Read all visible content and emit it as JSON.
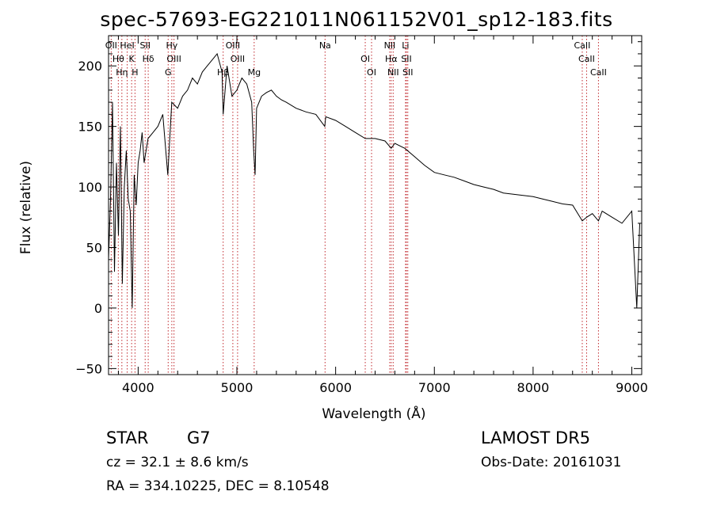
{
  "chart_data": {
    "type": "line",
    "title": "spec-57693-EG221011N061152V01_sp12-183.fits",
    "xlabel": "Wavelength (Å)",
    "ylabel": "Flux (relative)",
    "xlim": [
      3700,
      9100
    ],
    "ylim": [
      -55,
      225
    ],
    "x_ticks": [
      4000,
      5000,
      6000,
      7000,
      8000,
      9000
    ],
    "y_ticks": [
      -50,
      0,
      50,
      100,
      150,
      200
    ],
    "grid": false,
    "line_color": "#000000",
    "marker_color": "#c0282d",
    "series": [
      {
        "x": [
          3700,
          3720,
          3740,
          3760,
          3780,
          3800,
          3820,
          3840,
          3860,
          3880,
          3900,
          3920,
          3940,
          3960,
          3980,
          4000,
          4020,
          4040,
          4060,
          4080,
          4100,
          4150,
          4200,
          4250,
          4300,
          4340,
          4400,
          4450,
          4500,
          4550,
          4600,
          4650,
          4700,
          4750,
          4800,
          4850,
          4861,
          4900,
          4950,
          5000,
          5050,
          5100,
          5150,
          5170,
          5184,
          5200,
          5250,
          5300,
          5350,
          5400,
          5450,
          5500,
          5600,
          5700,
          5800,
          5890,
          5900,
          6000,
          6100,
          6200,
          6300,
          6400,
          6500,
          6563,
          6600,
          6700,
          6800,
          6900,
          7000,
          7100,
          7200,
          7300,
          7400,
          7500,
          7600,
          7700,
          7800,
          7900,
          8000,
          8100,
          8200,
          8300,
          8400,
          8498,
          8542,
          8600,
          8662,
          8700,
          8800,
          8900,
          9000,
          9050,
          9080
        ],
        "y": [
          40,
          90,
          170,
          30,
          120,
          60,
          150,
          20,
          100,
          130,
          90,
          80,
          0,
          110,
          85,
          120,
          130,
          145,
          120,
          130,
          140,
          145,
          150,
          160,
          110,
          170,
          165,
          175,
          180,
          190,
          185,
          195,
          200,
          205,
          210,
          195,
          160,
          200,
          175,
          180,
          190,
          185,
          170,
          130,
          110,
          165,
          175,
          178,
          180,
          175,
          172,
          170,
          165,
          162,
          160,
          150,
          158,
          155,
          150,
          145,
          140,
          140,
          138,
          132,
          136,
          132,
          125,
          118,
          112,
          110,
          108,
          105,
          102,
          100,
          98,
          95,
          94,
          93,
          92,
          90,
          88,
          86,
          85,
          72,
          75,
          78,
          72,
          80,
          75,
          70,
          80,
          0,
          70
        ]
      }
    ],
    "line_markers": [
      {
        "x": 3727,
        "label": "OII"
      },
      {
        "x": 3799,
        "label": "Hθ"
      },
      {
        "x": 3835,
        "label": "Hη"
      },
      {
        "x": 3889,
        "label": "HeI"
      },
      {
        "x": 3934,
        "label": "K"
      },
      {
        "x": 3968,
        "label": "H"
      },
      {
        "x": 4071,
        "label": "SII"
      },
      {
        "x": 4102,
        "label": "Hδ"
      },
      {
        "x": 4304,
        "label": "G"
      },
      {
        "x": 4341,
        "label": "Hγ"
      },
      {
        "x": 4363,
        "label": "OIII"
      },
      {
        "x": 4861,
        "label": "Hβ"
      },
      {
        "x": 4959,
        "label": "OIII"
      },
      {
        "x": 5007,
        "label": "OIII"
      },
      {
        "x": 5175,
        "label": "Mg"
      },
      {
        "x": 5893,
        "label": "Na"
      },
      {
        "x": 6300,
        "label": "OI"
      },
      {
        "x": 6364,
        "label": "OI"
      },
      {
        "x": 6548,
        "label": "NII"
      },
      {
        "x": 6563,
        "label": "Hα"
      },
      {
        "x": 6583,
        "label": "NII"
      },
      {
        "x": 6708,
        "label": "Li"
      },
      {
        "x": 6717,
        "label": "SII"
      },
      {
        "x": 6731,
        "label": "SII"
      },
      {
        "x": 8498,
        "label": "CaII"
      },
      {
        "x": 8542,
        "label": "CaII"
      },
      {
        "x": 8662,
        "label": "CaII"
      }
    ]
  },
  "info": {
    "class": "STAR",
    "subclass": "G7",
    "survey": "LAMOST DR5",
    "cz": "cz = 32.1 ± 8.6 km/s",
    "obs_date": "Obs-Date: 20161031",
    "coords": "RA = 334.10225, DEC =   8.10548"
  }
}
